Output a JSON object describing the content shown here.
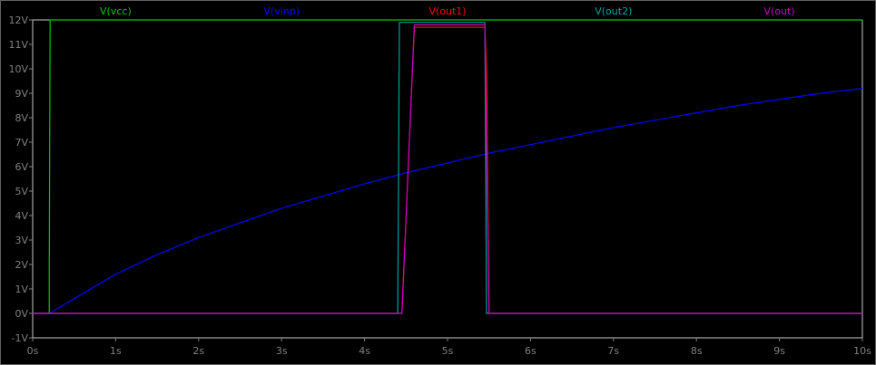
{
  "window": {
    "background": "#000000",
    "frame_color": "#c8c8c8",
    "axis_color": "#808080",
    "tick_label_color": "#808080"
  },
  "chart_data": {
    "type": "line",
    "title": "",
    "xlabel": "",
    "ylabel": "",
    "xlim": [
      0,
      10
    ],
    "ylim": [
      -1,
      12
    ],
    "x_ticks": [
      0,
      1,
      2,
      3,
      4,
      5,
      6,
      7,
      8,
      9,
      10
    ],
    "x_tick_labels": [
      "0s",
      "1s",
      "2s",
      "3s",
      "4s",
      "5s",
      "6s",
      "7s",
      "8s",
      "9s",
      "10s"
    ],
    "y_ticks": [
      -1,
      0,
      1,
      2,
      3,
      4,
      5,
      6,
      7,
      8,
      9,
      10,
      11,
      12
    ],
    "y_tick_labels": [
      "-1V",
      "0V",
      "1V",
      "2V",
      "3V",
      "4V",
      "5V",
      "6V",
      "7V",
      "8V",
      "9V",
      "10V",
      "11V",
      "12V"
    ],
    "grid": false,
    "legend_position": "top",
    "series": [
      {
        "name": "V(vcc)",
        "color": "#00c800",
        "x": [
          0,
          0.18,
          0.2,
          0.2,
          0.21,
          10
        ],
        "y": [
          0,
          0,
          0,
          2,
          12,
          12
        ]
      },
      {
        "name": "V(vinp)",
        "color": "#0000ff",
        "x": [
          0,
          0.2,
          0.5,
          1,
          1.5,
          2,
          2.5,
          3,
          3.5,
          4,
          4.5,
          5,
          5.5,
          6,
          6.5,
          7,
          7.5,
          8,
          8.5,
          9,
          9.5,
          10
        ],
        "y": [
          0,
          0,
          0.6,
          1.6,
          2.4,
          3.1,
          3.7,
          4.3,
          4.8,
          5.3,
          5.75,
          6.15,
          6.55,
          6.9,
          7.25,
          7.6,
          7.9,
          8.2,
          8.5,
          8.75,
          9.0,
          9.2
        ]
      },
      {
        "name": "V(out1)",
        "color": "#ff0000",
        "x": [
          0,
          4.45,
          4.45,
          4.6,
          5.45,
          5.47,
          5.5,
          10
        ],
        "y": [
          0,
          0,
          0,
          11.7,
          11.7,
          10,
          0,
          0
        ]
      },
      {
        "name": "V(out2)",
        "color": "#00a0a0",
        "x": [
          0,
          4.4,
          4.42,
          5.45,
          5.47,
          10
        ],
        "y": [
          0,
          0,
          11.9,
          11.9,
          0,
          0
        ]
      },
      {
        "name": "V(out)",
        "color": "#c800c8",
        "x": [
          0,
          4.45,
          4.6,
          5.45,
          5.5,
          10
        ],
        "y": [
          0,
          0,
          11.8,
          11.8,
          0,
          0
        ]
      }
    ]
  }
}
